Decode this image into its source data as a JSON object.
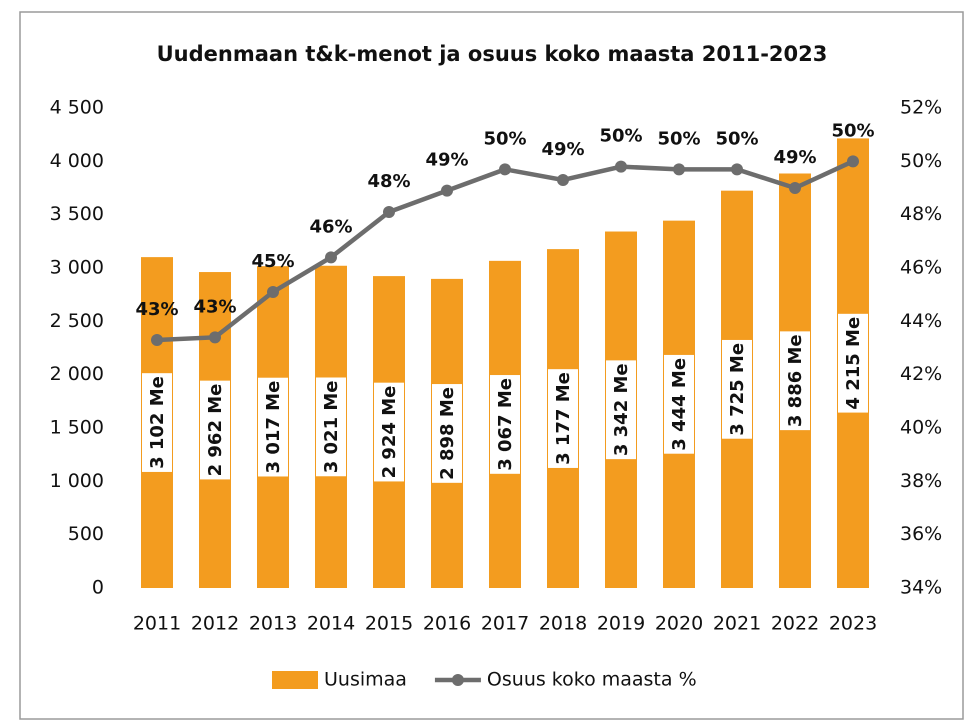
{
  "chart_data": {
    "type": "bar_line",
    "title": "Uudenmaan t&k-menot ja osuus koko maasta 2011-2023",
    "categories": [
      "2011",
      "2012",
      "2013",
      "2014",
      "2015",
      "2016",
      "2017",
      "2018",
      "2019",
      "2020",
      "2021",
      "2022",
      "2023"
    ],
    "series": [
      {
        "name": "Uusimaa",
        "type": "bar",
        "color": "#f39c1f",
        "values": [
          3102,
          2962,
          3017,
          3021,
          2924,
          2898,
          3067,
          3177,
          3342,
          3444,
          3725,
          3886,
          4215
        ],
        "value_labels": [
          "3 102 Me",
          "2 962 Me",
          "3 017 Me",
          "3 021 Me",
          "2 924 Me",
          "2 898 Me",
          "3 067 Me",
          "3 177 Me",
          "3 342 Me",
          "3 444 Me",
          "3 725 Me",
          "3 886 Me",
          "4 215 Me"
        ]
      },
      {
        "name": "Osuus koko maasta %",
        "type": "line",
        "axis": "y2",
        "color": "#6d6d6d",
        "values": [
          43.3,
          43.4,
          45.1,
          46.4,
          48.1,
          48.9,
          49.7,
          49.3,
          49.8,
          49.7,
          49.7,
          49.0,
          50.0
        ],
        "value_labels": [
          "43%",
          "43%",
          "45%",
          "46%",
          "48%",
          "49%",
          "50%",
          "49%",
          "50%",
          "50%",
          "50%",
          "49%",
          "50%"
        ]
      }
    ],
    "ylim": [
      0,
      4500
    ],
    "yticks": [
      0,
      500,
      {
        "value": 1000,
        "label": "1 000"
      },
      {
        "value": 1500,
        "label": "1 500"
      },
      {
        "value": 2000,
        "label": "2 000"
      },
      {
        "value": 2500,
        "label": "2 500"
      },
      {
        "value": 3000,
        "label": "3 000"
      },
      {
        "value": 3500,
        "label": "3 500"
      },
      {
        "value": 4000,
        "label": "4 000"
      },
      {
        "value": 4500,
        "label": "4 500"
      }
    ],
    "y2lim": [
      34,
      52
    ],
    "y2ticks": [
      {
        "value": 34,
        "label": "34%"
      },
      {
        "value": 36,
        "label": "36%"
      },
      {
        "value": 38,
        "label": "38%"
      },
      {
        "value": 40,
        "label": "40%"
      },
      {
        "value": 42,
        "label": "42%"
      },
      {
        "value": 44,
        "label": "44%"
      },
      {
        "value": 46,
        "label": "46%"
      },
      {
        "value": 48,
        "label": "48%"
      },
      {
        "value": 50,
        "label": "50%"
      },
      {
        "value": 52,
        "label": "52%"
      }
    ],
    "legend": "bottom"
  }
}
